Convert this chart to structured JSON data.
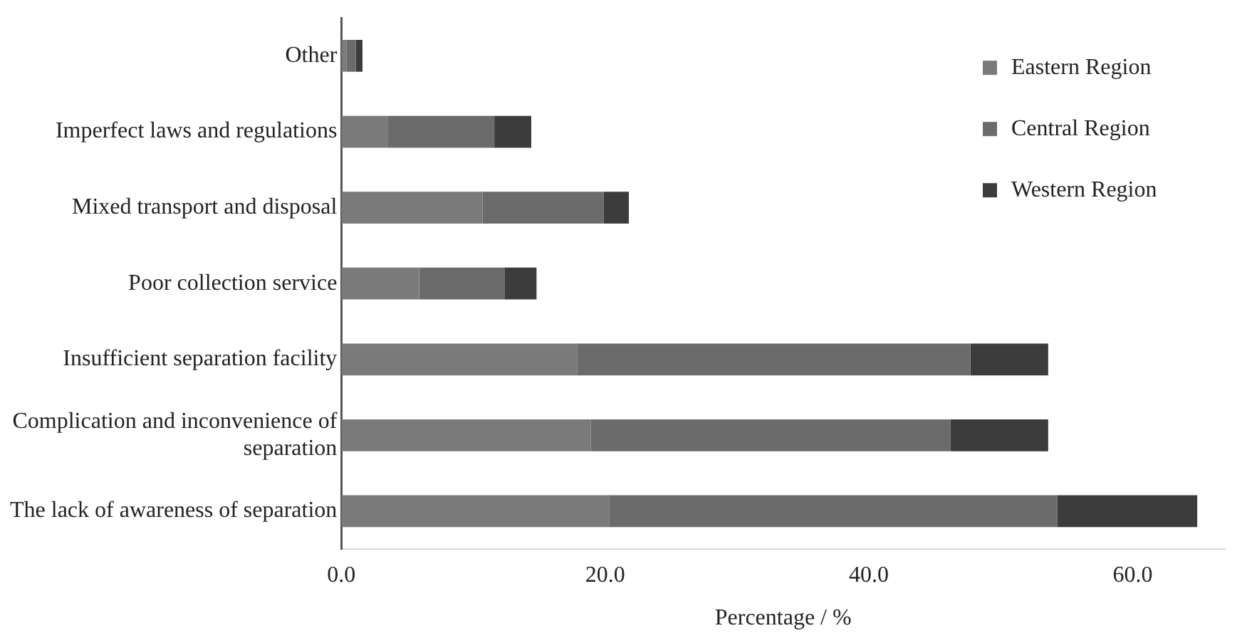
{
  "chart_data": {
    "type": "bar",
    "orientation": "horizontal",
    "stacked": true,
    "xlabel": "Percentage / %",
    "categories": [
      "Other",
      "Imperfect laws and regulations",
      "Mixed transport and disposal",
      "Poor collection service",
      "Insufficient separation facility",
      "Complication and inconvenience of separation",
      "The lack of awareness of separation"
    ],
    "series": [
      {
        "name": "Eastern Region",
        "color": "#7a7a7a",
        "values": [
          0.4,
          3.5,
          10.7,
          5.9,
          17.9,
          18.9,
          20.3
        ]
      },
      {
        "name": "Central Region",
        "color": "#6b6b6b",
        "values": [
          0.7,
          8.1,
          9.2,
          6.5,
          29.8,
          27.3,
          34.0
        ]
      },
      {
        "name": "Western Region",
        "color": "#3c3c3c",
        "values": [
          0.5,
          2.8,
          1.9,
          2.4,
          5.9,
          7.4,
          10.6
        ]
      }
    ],
    "xlim": [
      0,
      67
    ],
    "xticks": [
      {
        "value": 0,
        "label": "0.0"
      },
      {
        "value": 20,
        "label": "20.0"
      },
      {
        "value": 40,
        "label": "40.0"
      },
      {
        "value": 60,
        "label": "60.0"
      }
    ],
    "grid": false,
    "legend": "top right"
  }
}
